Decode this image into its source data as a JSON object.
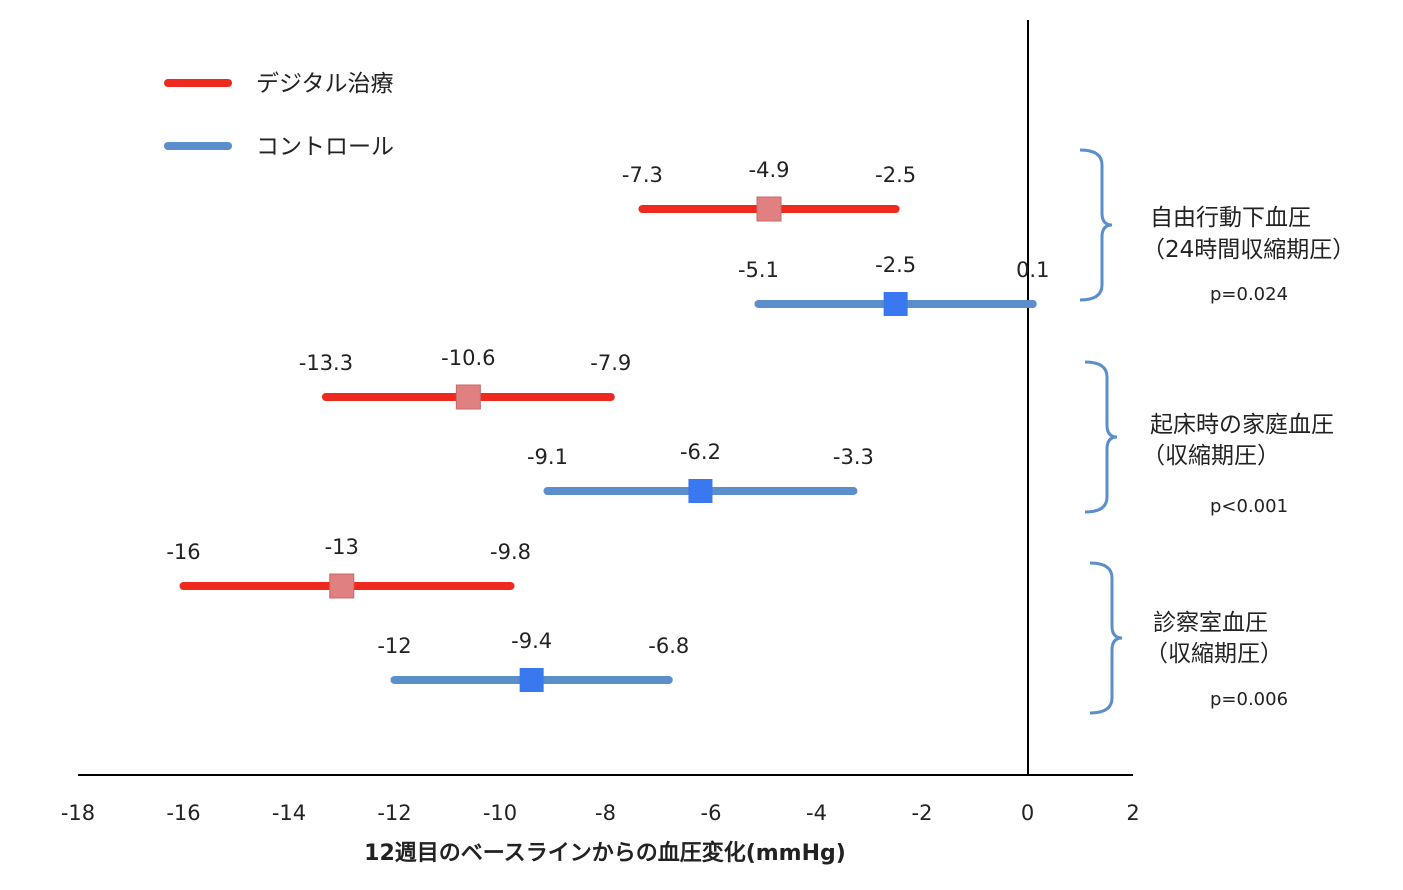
{
  "chart_data": {
    "type": "forest",
    "xlabel": "12週目のベースラインからの血圧変化(mmHg)",
    "xlim": [
      -18,
      2
    ],
    "xticks": [
      -18,
      -16,
      -14,
      -12,
      -10,
      -8,
      -6,
      -4,
      -2,
      0,
      2
    ],
    "reference_line_x": 0,
    "legend": [
      {
        "name": "デジタル治療",
        "color": "#f0291f"
      },
      {
        "name": "コントロール",
        "color": "#5b8fcc"
      }
    ],
    "rows": [
      {
        "series": "デジタル治療",
        "group": 0,
        "lower": -7.3,
        "point": -4.9,
        "upper": -2.5,
        "labels": {
          "lower": "-7.3",
          "point": "-4.9",
          "upper": "-2.5"
        }
      },
      {
        "series": "コントロール",
        "group": 0,
        "lower": -5.1,
        "point": -2.5,
        "upper": 0.1,
        "labels": {
          "lower": "-5.1",
          "point": "-2.5",
          "upper": "0.1"
        }
      },
      {
        "series": "デジタル治療",
        "group": 1,
        "lower": -13.3,
        "point": -10.6,
        "upper": -7.9,
        "labels": {
          "lower": "-13.3",
          "point": "-10.6",
          "upper": "-7.9"
        }
      },
      {
        "series": "コントロール",
        "group": 1,
        "lower": -9.1,
        "point": -6.2,
        "upper": -3.3,
        "labels": {
          "lower": "-9.1",
          "point": "-6.2",
          "upper": "-3.3"
        }
      },
      {
        "series": "デジタル治療",
        "group": 2,
        "lower": -16,
        "point": -13,
        "upper": -9.8,
        "labels": {
          "lower": "-16",
          "point": "-13",
          "upper": "-9.8"
        }
      },
      {
        "series": "コントロール",
        "group": 2,
        "lower": -12,
        "point": -9.4,
        "upper": -6.8,
        "labels": {
          "lower": "-12",
          "point": "-9.4",
          "upper": "-6.8"
        }
      }
    ],
    "groups": [
      {
        "title_line1": "自由行動下血圧",
        "title_line2": "（24時間収縮期圧）",
        "p": "p=0.024"
      },
      {
        "title_line1": "起床時の家庭血圧",
        "title_line2": "（収縮期圧）",
        "p": "p<0.001"
      },
      {
        "title_line1": "診察室血圧",
        "title_line2": "（収縮期圧）",
        "p": "p=0.006"
      }
    ],
    "colors": {
      "treatment_line": "#f0291f",
      "treatment_marker": "#e08080",
      "control_line": "#5b8fcc",
      "control_marker": "#3a78f0",
      "brace": "#5b8fcc"
    }
  }
}
